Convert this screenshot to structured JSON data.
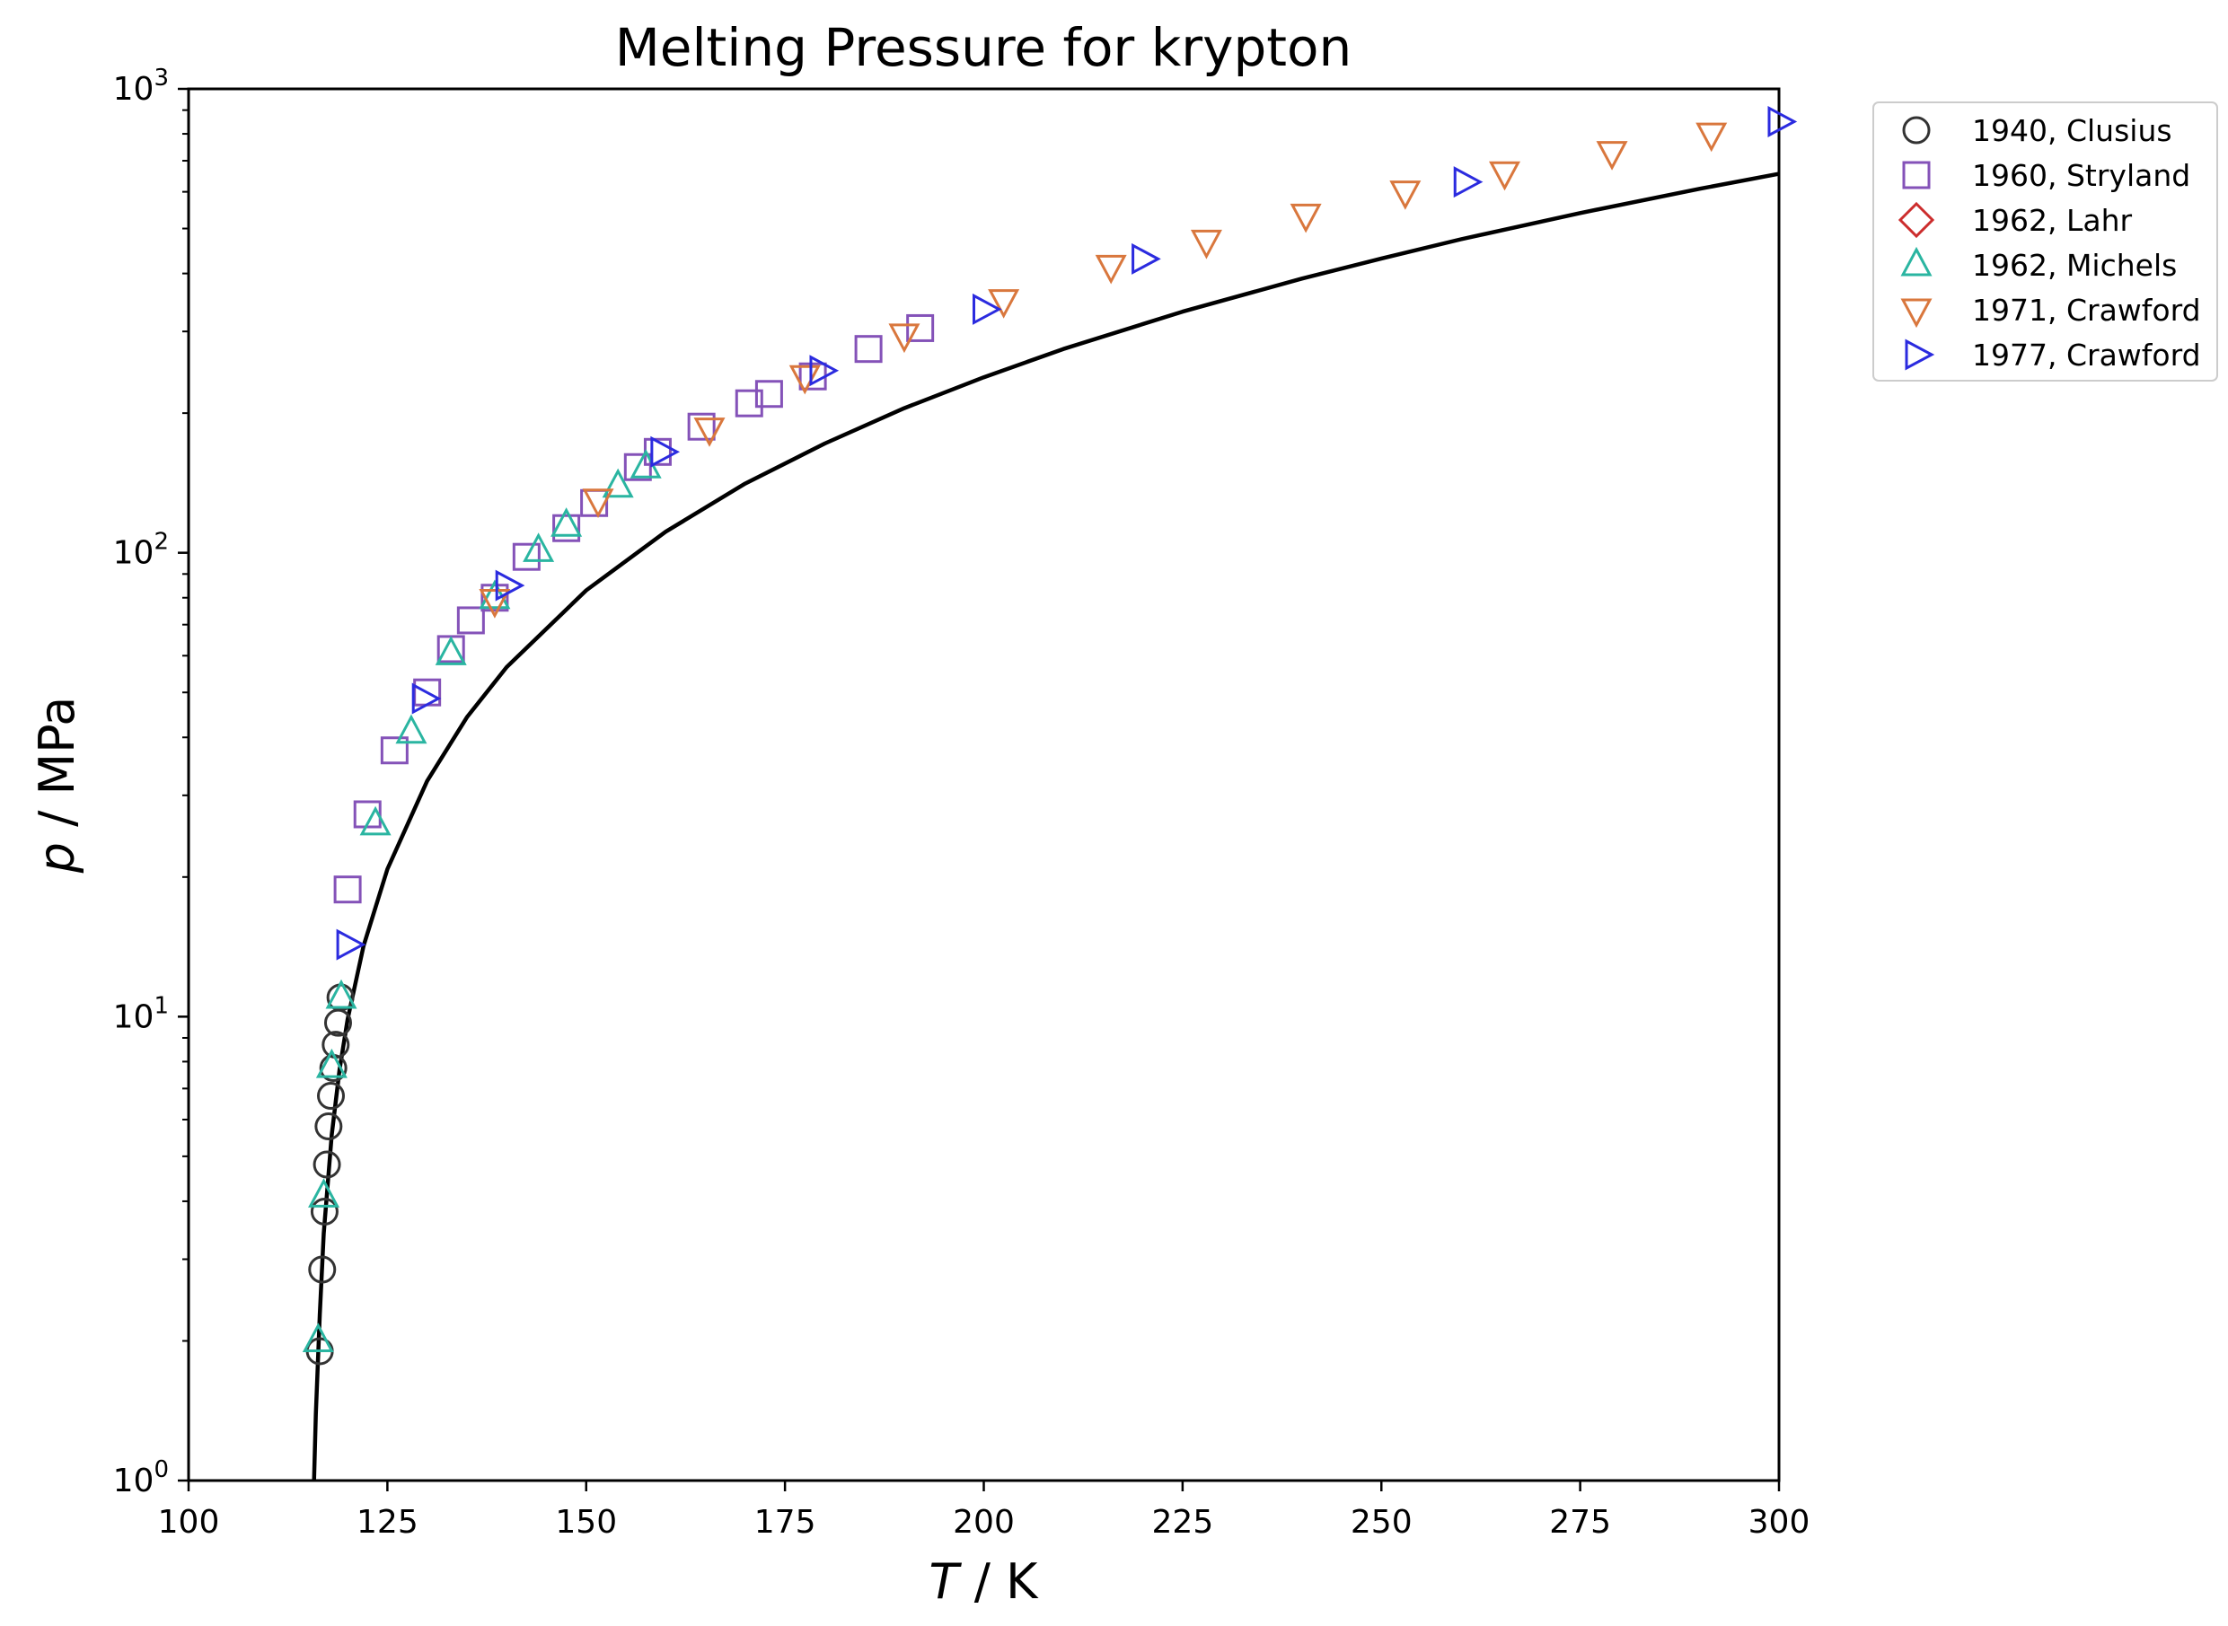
{
  "chart_data": {
    "type": "scatter",
    "title": "Melting Pressure for krypton",
    "xlabel": {
      "symbol": "T",
      "unit": " / K"
    },
    "ylabel": {
      "symbol": "p",
      "unit": " / MPa"
    },
    "xlim": [
      100,
      300
    ],
    "ylim": [
      1,
      1000
    ],
    "y_scale": "log",
    "grid": false,
    "legend_position": "outside top-right",
    "x_ticks": [
      {
        "value": 100,
        "label": "100"
      },
      {
        "value": 125,
        "label": "125"
      },
      {
        "value": 150,
        "label": "150"
      },
      {
        "value": 175,
        "label": "175"
      },
      {
        "value": 200,
        "label": "200"
      },
      {
        "value": 225,
        "label": "225"
      },
      {
        "value": 250,
        "label": "250"
      },
      {
        "value": 275,
        "label": "275"
      },
      {
        "value": 300,
        "label": "300"
      }
    ],
    "y_ticks": [
      {
        "value": 1,
        "base": "10",
        "exp": "0"
      },
      {
        "value": 10,
        "base": "10",
        "exp": "1"
      },
      {
        "value": 100,
        "base": "10",
        "exp": "2"
      },
      {
        "value": 1000,
        "base": "10",
        "exp": "3"
      }
    ],
    "series": [
      {
        "name": "1940, Clusius",
        "marker": "circle",
        "color": "#333333",
        "x": [
          116.5,
          116.8,
          117.1,
          117.4,
          117.6,
          117.9,
          118.2,
          118.5,
          118.8,
          119.1
        ],
        "y": [
          1.9,
          2.85,
          3.8,
          4.8,
          5.8,
          6.75,
          7.75,
          8.7,
          9.7,
          11.0
        ]
      },
      {
        "name": "1960, Stryland",
        "marker": "square",
        "color": "#8452b8",
        "x": [
          120.0,
          122.5,
          125.9,
          130.0,
          133.0,
          135.5,
          138.5,
          142.5,
          147.5,
          151.0,
          156.5,
          159.0,
          164.5,
          170.5,
          173.0,
          178.5,
          185.5,
          192.0
        ],
        "y": [
          18.8,
          27.3,
          37.5,
          50.0,
          62.0,
          71.5,
          80.0,
          98.0,
          113.0,
          128.0,
          153.0,
          165.0,
          187.0,
          210.0,
          220.0,
          240.0,
          275.0,
          305.0
        ]
      },
      {
        "name": "1962, Lahr",
        "marker": "diamond",
        "color": "#cc2d2d",
        "x": [],
        "y": []
      },
      {
        "name": "1962, Michels",
        "marker": "triangle-up",
        "color": "#2ab5a1",
        "x": [
          116.3,
          117.0,
          118.0,
          119.2,
          123.5,
          128.0,
          133.0,
          138.5,
          144.0,
          147.5,
          154.0,
          157.5
        ],
        "y": [
          2.0,
          4.1,
          7.8,
          11.0,
          26.0,
          41.0,
          60.5,
          80.0,
          101.0,
          114.5,
          139.0,
          153.0
        ]
      },
      {
        "name": "1971, Crawford",
        "marker": "triangle-down",
        "color": "#d9773d",
        "x": [
          138.5,
          151.5,
          165.5,
          177.5,
          190.0,
          202.5,
          216.0,
          228.0,
          240.5,
          253.0,
          265.5,
          279.0,
          291.5
        ],
        "y": [
          79.0,
          130.0,
          185.0,
          240.0,
          295.0,
          350.0,
          415.0,
          470.0,
          535.0,
          600.0,
          660.0,
          730.0,
          800.0
        ]
      },
      {
        "name": "1977, Crawford",
        "marker": "triangle-right",
        "color": "#2b2bdf",
        "x": [
          120.0,
          129.5,
          140.0,
          159.5,
          179.5,
          200.0,
          220.0,
          260.5,
          300.0
        ],
        "y": [
          14.3,
          48.5,
          85.0,
          165.0,
          247.0,
          335.0,
          430.0,
          630.0,
          850.0
        ]
      },
      {
        "name": "",
        "type": "line",
        "color": "#000000",
        "x": [
          115.78,
          116.0,
          116.5,
          117.0,
          118.0,
          119.0,
          120.0,
          122.0,
          125.0,
          130.0,
          135.0,
          140.0,
          150.0,
          160.0,
          170.0,
          180.0,
          190.0,
          200.0,
          210.0,
          225.0,
          240.0,
          250.0,
          260.0,
          275.0,
          290.0,
          300.0
        ],
        "y": [
          1.0,
          1.39,
          2.28,
          3.41,
          5.56,
          7.71,
          9.87,
          14.2,
          20.8,
          32.2,
          44.2,
          56.7,
          83.0,
          111.0,
          141.0,
          172.0,
          205.0,
          239.0,
          275.0,
          331.0,
          390.0,
          431.0,
          474.0,
          540.0,
          609.0,
          656.0
        ]
      }
    ]
  }
}
